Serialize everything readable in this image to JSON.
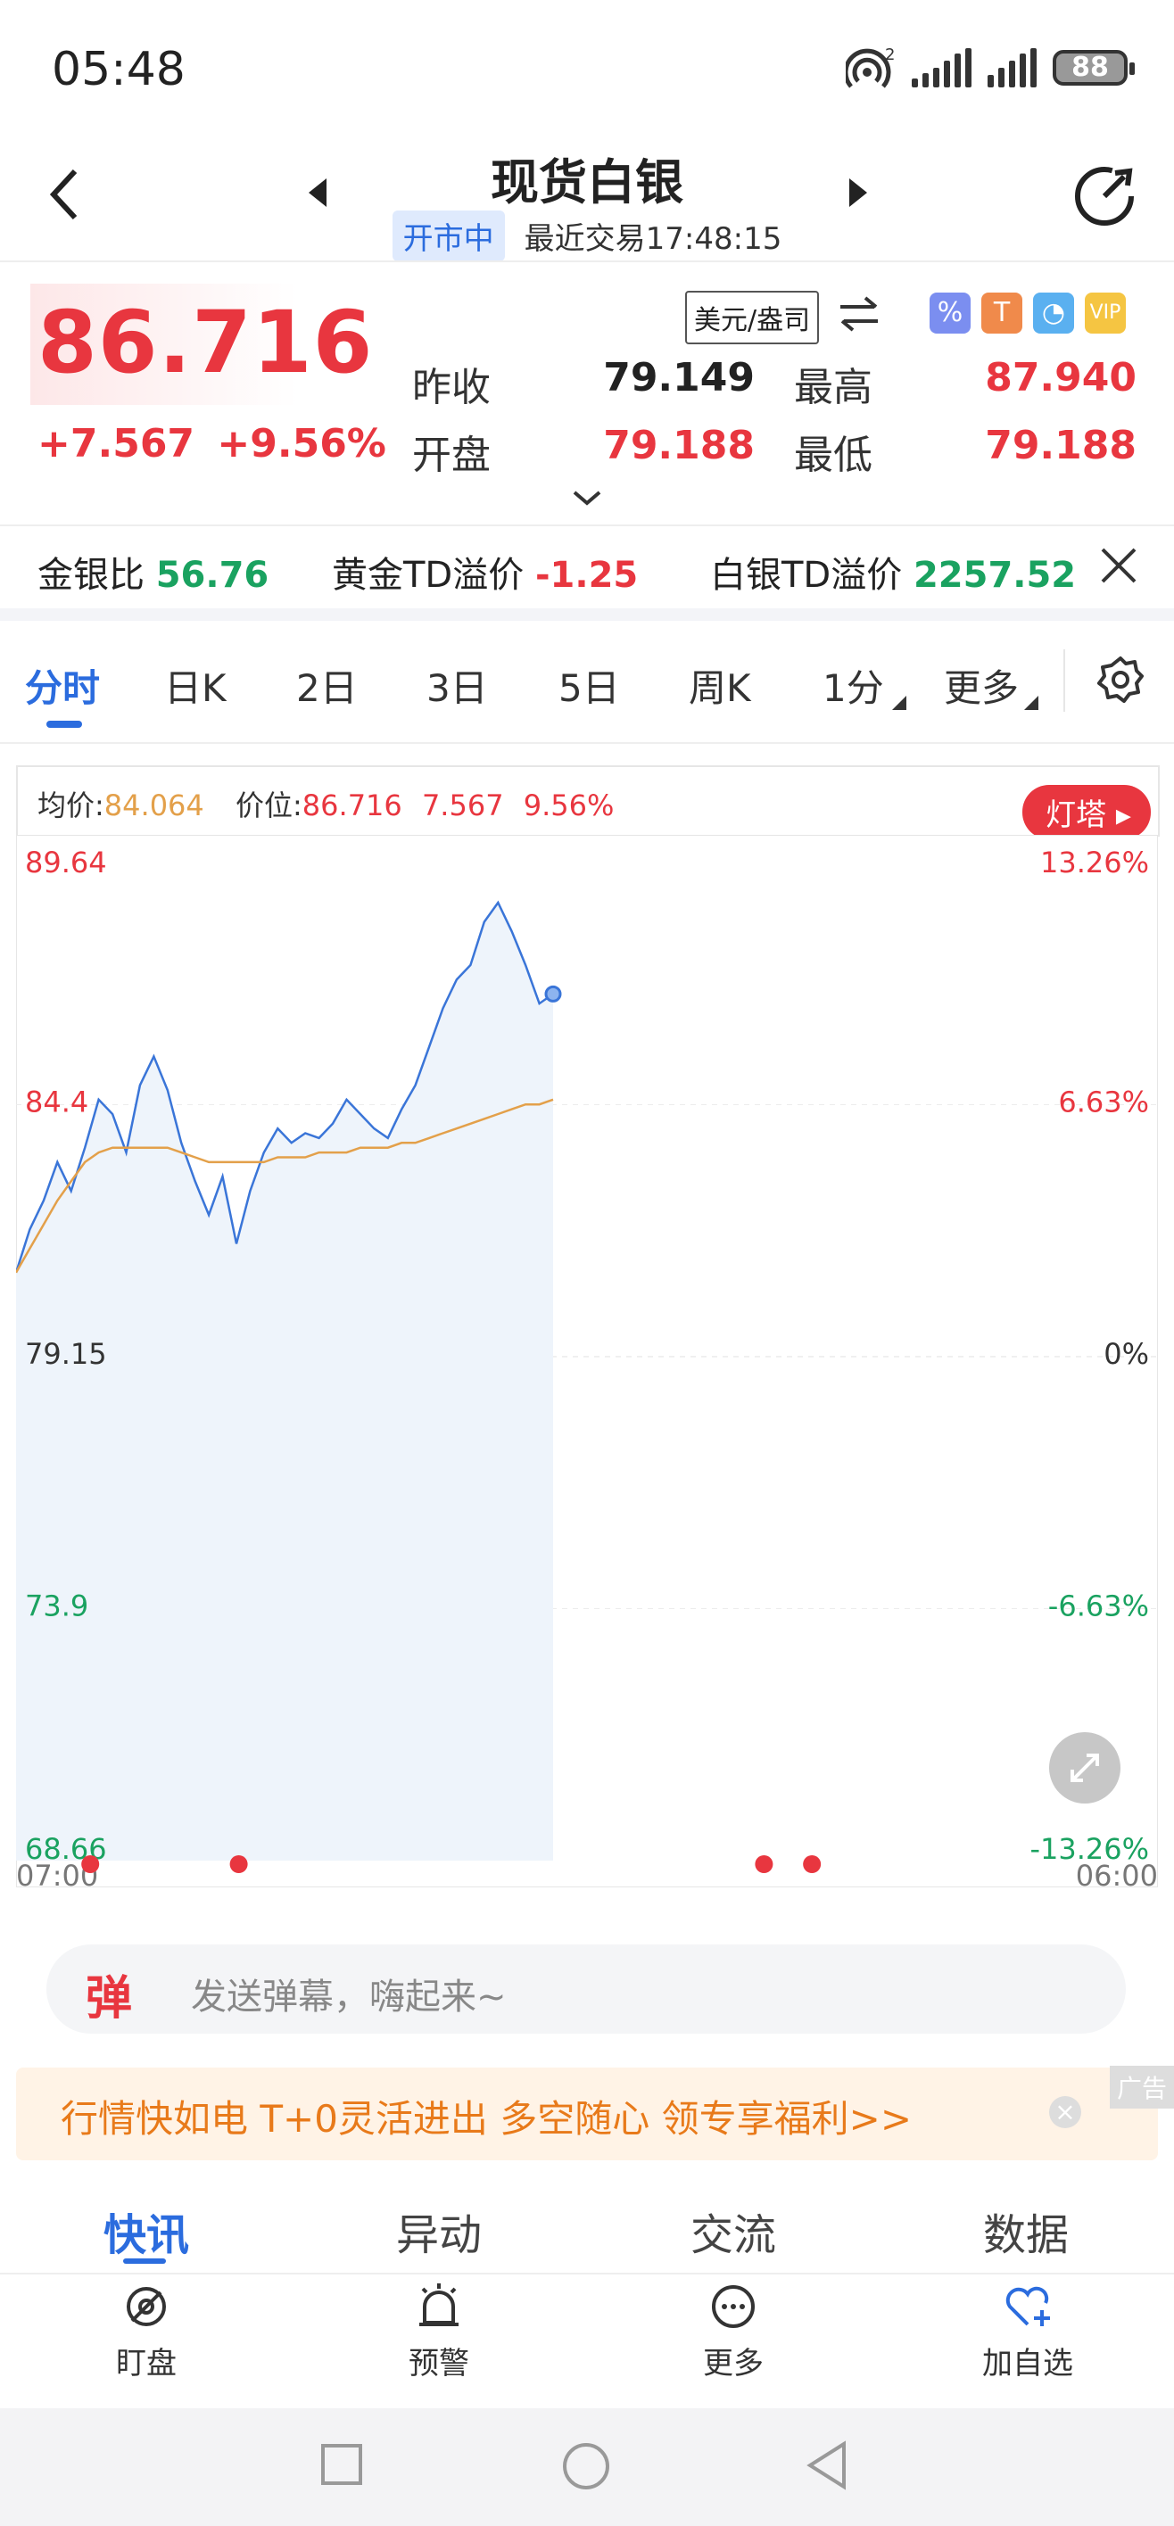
{
  "status": {
    "time": "05:48",
    "battery": "88"
  },
  "header": {
    "title": "现货白银",
    "status_badge": "开市中",
    "last_trade": "最近交易17:48:15"
  },
  "quote": {
    "price": "86.716",
    "change": "+7.567",
    "change_pct": "+9.56%",
    "unit": "美元/盎司",
    "prev_close_label": "昨收",
    "prev_close": "79.149",
    "high_label": "最高",
    "high": "87.940",
    "open_label": "开盘",
    "open": "79.188",
    "low_label": "最低",
    "low": "79.188"
  },
  "ratios": [
    {
      "label": "金银比",
      "value": "56.76",
      "color": "green"
    },
    {
      "label": "黄金TD溢价",
      "value": "-1.25",
      "color": "red"
    },
    {
      "label": "白银TD溢价",
      "value": "2257.52",
      "color": "green"
    }
  ],
  "tabs": [
    "分时",
    "日K",
    "2日",
    "3日",
    "5日",
    "周K",
    "1分",
    "更多"
  ],
  "chart_head": {
    "avg_label": "均价:",
    "avg": "84.064",
    "price_label": "价位:",
    "price": "86.716",
    "chg": "7.567",
    "pct": "9.56%",
    "lighthouse": "灯塔"
  },
  "chart_data": {
    "type": "line",
    "title": "",
    "x_range": [
      "07:00",
      "06:00"
    ],
    "y_ticks_left": [
      "89.64",
      "84.4",
      "79.15",
      "73.9",
      "68.66"
    ],
    "y_ticks_right": [
      "13.26%",
      "6.63%",
      "0%",
      "-6.63%",
      "-13.26%"
    ],
    "ylim": [
      68.66,
      89.64
    ],
    "reference": 79.15,
    "series": [
      {
        "values": [
          80.9,
          81.8,
          82.4,
          83.2,
          82.6,
          83.5,
          84.5,
          84.2,
          83.4,
          84.8,
          85.4,
          84.7,
          83.6,
          82.8,
          82.1,
          82.9,
          81.5,
          82.6,
          83.4,
          83.9,
          83.6,
          83.8,
          83.7,
          84.0,
          84.5,
          84.2,
          83.9,
          83.7,
          84.3,
          84.8,
          85.6,
          86.4,
          87.0,
          87.3,
          88.2,
          88.6,
          88.0,
          87.3,
          86.5,
          86.7
        ]
      },
      {
        "values": [
          80.9,
          81.4,
          81.9,
          82.4,
          82.8,
          83.2,
          83.4,
          83.5,
          83.5,
          83.5,
          83.5,
          83.5,
          83.4,
          83.3,
          83.2,
          83.2,
          83.2,
          83.2,
          83.2,
          83.3,
          83.3,
          83.3,
          83.4,
          83.4,
          83.4,
          83.5,
          83.5,
          83.5,
          83.6,
          83.6,
          83.7,
          83.8,
          83.9,
          84.0,
          84.1,
          84.2,
          84.3,
          84.4,
          84.4,
          84.5
        ]
      }
    ],
    "line_colors": [
      "#3a75d8",
      "#e3a04a"
    ],
    "markers_x_fraction": [
      0.065,
      0.195,
      0.655,
      0.697
    ]
  },
  "danmu": {
    "icon": "弹",
    "placeholder": "发送弹幕，嗨起来~"
  },
  "ad": {
    "text": "行情快如电 T+0灵活进出 多空随心 领专享福利>>",
    "tag": "广告"
  },
  "news_tabs": [
    "快讯",
    "异动",
    "交流",
    "数据"
  ],
  "toolbar": [
    {
      "label": "盯盘",
      "icon": "eye-off-icon"
    },
    {
      "label": "预警",
      "icon": "alarm-icon"
    },
    {
      "label": "更多",
      "icon": "more-icon"
    },
    {
      "label": "加自选",
      "icon": "heart-plus-icon"
    }
  ]
}
